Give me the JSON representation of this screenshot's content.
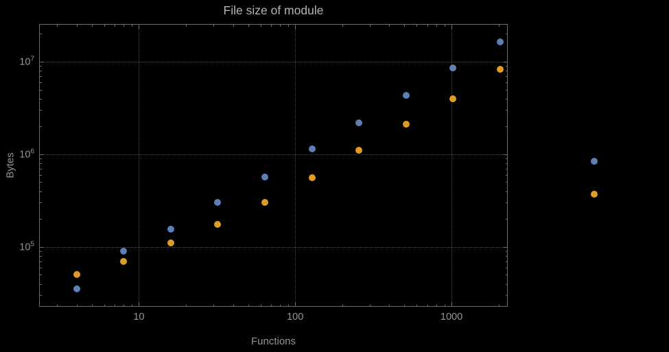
{
  "chart_data": {
    "type": "scatter",
    "title": "File size of module",
    "xlabel": "Functions",
    "ylabel": "Bytes",
    "x_scale": "log",
    "y_scale": "log",
    "grid": true,
    "legend": false,
    "xlim": [
      2.3,
      2290
    ],
    "ylim": [
      22600,
      25500000
    ],
    "x_ticks": [
      10,
      100,
      1000
    ],
    "x_tick_labels": [
      "10",
      "100",
      "1000"
    ],
    "y_ticks": [
      100000,
      1000000,
      10000000
    ],
    "y_tick_labels": [
      "10^5",
      "10^6",
      "10^7"
    ],
    "x": [
      4,
      8,
      16,
      32,
      64,
      128,
      256,
      512,
      1024,
      2048,
      8192
    ],
    "series": [
      {
        "name": "blue",
        "color": "#5E81B5",
        "values": [
          35000,
          90000,
          155000,
          300000,
          570000,
          1150000,
          2200000,
          4300000,
          8600000,
          16500000,
          840000
        ]
      },
      {
        "name": "orange",
        "color": "#E19C24",
        "values": [
          50000,
          70000,
          110000,
          175000,
          300000,
          560000,
          1100000,
          2100000,
          4000000,
          8300000,
          370000
        ]
      }
    ]
  }
}
